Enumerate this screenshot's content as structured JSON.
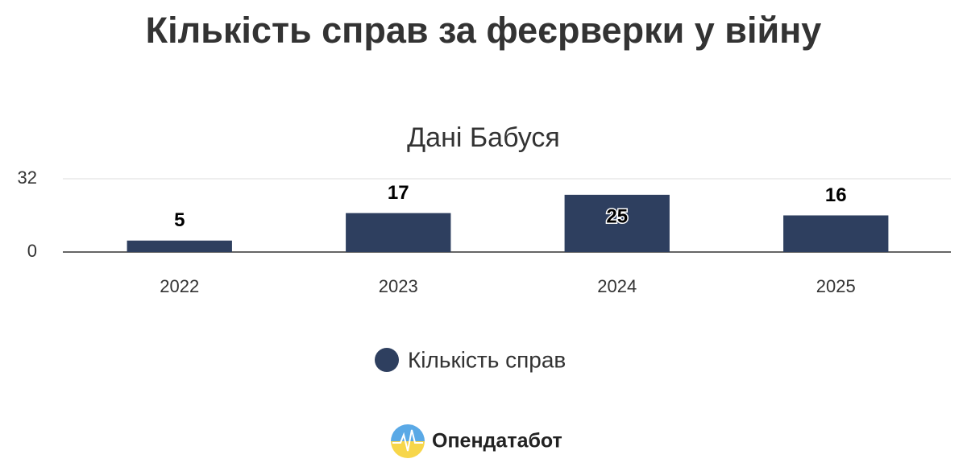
{
  "chart_data": {
    "type": "bar",
    "title": "Кількість справ за феєрверки у війну",
    "subtitle": "Дані Бабуся",
    "categories": [
      "2022",
      "2023",
      "2024",
      "2025"
    ],
    "series": [
      {
        "name": "Кількість справ",
        "color": "#2e3f5f",
        "values": [
          5,
          17,
          25,
          16
        ]
      }
    ],
    "ylim": [
      0,
      32
    ],
    "yticks": [
      0,
      32
    ],
    "grid": true,
    "legend": "bottom",
    "credit": "Опендатабот"
  }
}
